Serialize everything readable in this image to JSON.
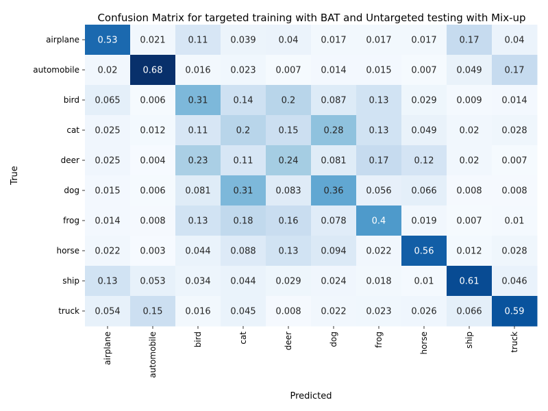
{
  "chart_data": {
    "type": "heatmap",
    "title": "Confusion Matrix for targeted training with BAT and Untargeted testing with Mix-up",
    "xlabel": "Predicted",
    "ylabel": "True",
    "x_categories": [
      "airplane",
      "automobile",
      "bird",
      "cat",
      "deer",
      "dog",
      "frog",
      "horse",
      "ship",
      "truck"
    ],
    "y_categories": [
      "airplane",
      "automobile",
      "bird",
      "cat",
      "deer",
      "dog",
      "frog",
      "horse",
      "ship",
      "truck"
    ],
    "values": [
      [
        "0.53",
        "0.021",
        "0.11",
        "0.039",
        "0.04",
        "0.017",
        "0.017",
        "0.017",
        "0.17",
        "0.04"
      ],
      [
        "0.02",
        "0.68",
        "0.016",
        "0.023",
        "0.007",
        "0.014",
        "0.015",
        "0.007",
        "0.049",
        "0.17"
      ],
      [
        "0.065",
        "0.006",
        "0.31",
        "0.14",
        "0.2",
        "0.087",
        "0.13",
        "0.029",
        "0.009",
        "0.014"
      ],
      [
        "0.025",
        "0.012",
        "0.11",
        "0.2",
        "0.15",
        "0.28",
        "0.13",
        "0.049",
        "0.02",
        "0.028"
      ],
      [
        "0.025",
        "0.004",
        "0.23",
        "0.11",
        "0.24",
        "0.081",
        "0.17",
        "0.12",
        "0.02",
        "0.007"
      ],
      [
        "0.015",
        "0.006",
        "0.081",
        "0.31",
        "0.083",
        "0.36",
        "0.056",
        "0.066",
        "0.008",
        "0.008"
      ],
      [
        "0.014",
        "0.008",
        "0.13",
        "0.18",
        "0.16",
        "0.078",
        "0.4",
        "0.019",
        "0.007",
        "0.01"
      ],
      [
        "0.022",
        "0.003",
        "0.044",
        "0.088",
        "0.13",
        "0.094",
        "0.022",
        "0.56",
        "0.012",
        "0.028"
      ],
      [
        "0.13",
        "0.053",
        "0.034",
        "0.044",
        "0.029",
        "0.024",
        "0.018",
        "0.01",
        "0.61",
        "0.046"
      ],
      [
        "0.054",
        "0.15",
        "0.016",
        "0.045",
        "0.008",
        "0.022",
        "0.023",
        "0.026",
        "0.066",
        "0.59"
      ]
    ],
    "colormap": "Blues",
    "value_range": [
      0,
      0.68
    ],
    "colorbar": false,
    "grid": false
  }
}
